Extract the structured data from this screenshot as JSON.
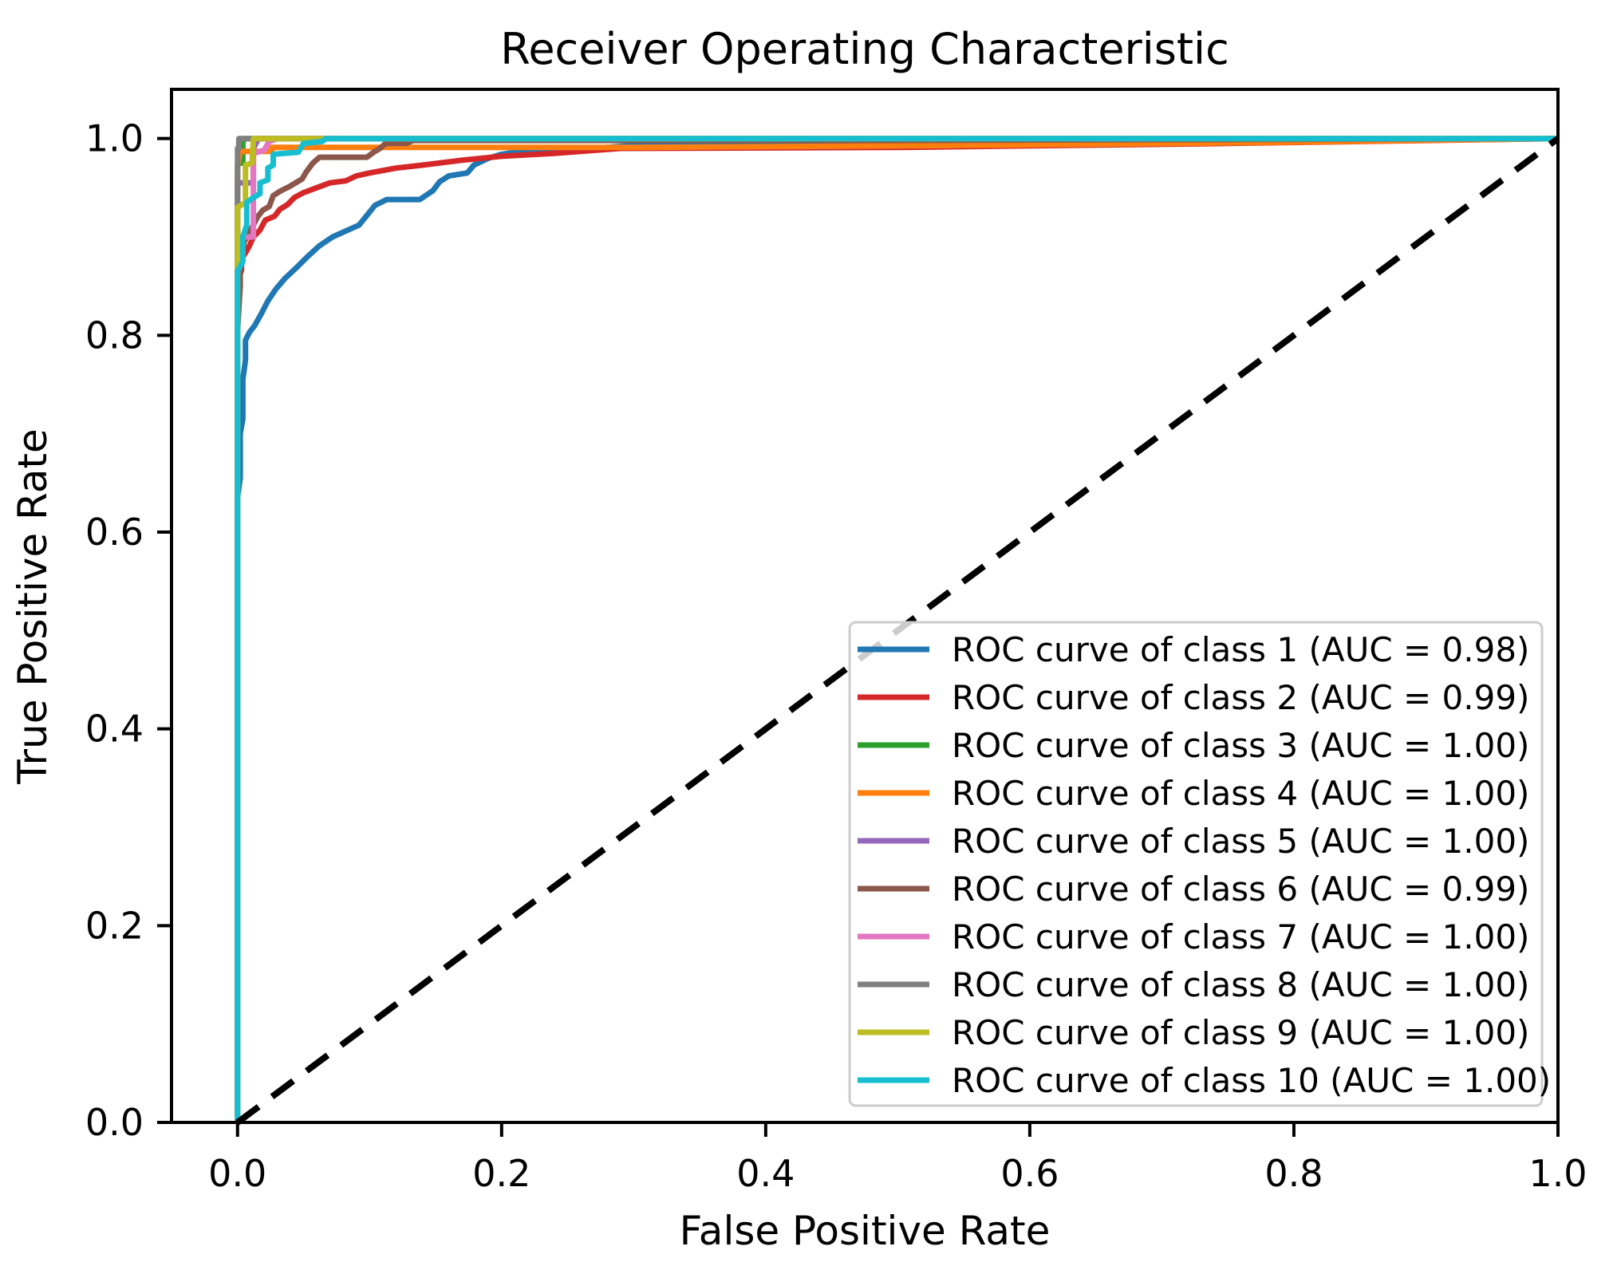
{
  "figure": {
    "title": "Receiver Operating Characteristic",
    "x_axis_label": "False Positive Rate",
    "y_axis_label": "True Positive Rate"
  },
  "chart_data": {
    "type": "line",
    "title": "Receiver Operating Characteristic",
    "xlabel": "False Positive Rate",
    "ylabel": "True Positive Rate",
    "xlim": [
      -0.05,
      1.0
    ],
    "ylim": [
      0.0,
      1.05
    ],
    "grid": false,
    "legend_position": "lower right",
    "x_ticks": {
      "values": [
        0.0,
        0.2,
        0.4,
        0.6,
        0.8,
        1.0
      ],
      "labels": [
        "0.0",
        "0.2",
        "0.4",
        "0.6",
        "0.8",
        "1.0"
      ]
    },
    "y_ticks": {
      "values": [
        0.0,
        0.2,
        0.4,
        0.6,
        0.8,
        1.0
      ],
      "labels": [
        "0.0",
        "0.2",
        "0.4",
        "0.6",
        "0.8",
        "1.0"
      ]
    },
    "reference_line": {
      "description": "chance diagonal",
      "color": "#000000",
      "style": "dashed",
      "points": [
        [
          0,
          0
        ],
        [
          1,
          1
        ]
      ]
    },
    "series": [
      {
        "name": "class 1",
        "auc": 0.98,
        "color": "#1f77b4",
        "legend": "ROC curve of class 1 (AUC = 0.98)",
        "points": [
          [
            0,
            0
          ],
          [
            0,
            0.635
          ],
          [
            0.002,
            0.655
          ],
          [
            0.002,
            0.7
          ],
          [
            0.004,
            0.715
          ],
          [
            0.004,
            0.755
          ],
          [
            0.006,
            0.775
          ],
          [
            0.006,
            0.795
          ],
          [
            0.009,
            0.803
          ],
          [
            0.013,
            0.81
          ],
          [
            0.018,
            0.822
          ],
          [
            0.023,
            0.835
          ],
          [
            0.029,
            0.847
          ],
          [
            0.036,
            0.858
          ],
          [
            0.044,
            0.868
          ],
          [
            0.053,
            0.88
          ],
          [
            0.062,
            0.891
          ],
          [
            0.072,
            0.9
          ],
          [
            0.082,
            0.906
          ],
          [
            0.092,
            0.912
          ],
          [
            0.098,
            0.922
          ],
          [
            0.104,
            0.932
          ],
          [
            0.113,
            0.938
          ],
          [
            0.138,
            0.938
          ],
          [
            0.148,
            0.947
          ],
          [
            0.153,
            0.956
          ],
          [
            0.16,
            0.962
          ],
          [
            0.174,
            0.965
          ],
          [
            0.179,
            0.973
          ],
          [
            0.19,
            0.98
          ],
          [
            0.2,
            0.984
          ],
          [
            0.21,
            0.986
          ],
          [
            0.245,
            0.987
          ],
          [
            0.27,
            0.99
          ],
          [
            0.3,
            0.993
          ],
          [
            0.32,
            0.995
          ],
          [
            0.5,
            0.996
          ],
          [
            0.75,
            0.998
          ],
          [
            1,
            1
          ]
        ]
      },
      {
        "name": "class 2",
        "auc": 0.99,
        "color": "#d62728",
        "legend": "ROC curve of class 2 (AUC = 0.99)",
        "points": [
          [
            0,
            0
          ],
          [
            0,
            0.855
          ],
          [
            0.003,
            0.866
          ],
          [
            0.003,
            0.877
          ],
          [
            0.006,
            0.884
          ],
          [
            0.009,
            0.891
          ],
          [
            0.012,
            0.9
          ],
          [
            0.017,
            0.907
          ],
          [
            0.021,
            0.917
          ],
          [
            0.028,
            0.921
          ],
          [
            0.032,
            0.928
          ],
          [
            0.038,
            0.933
          ],
          [
            0.043,
            0.94
          ],
          [
            0.05,
            0.945
          ],
          [
            0.06,
            0.95
          ],
          [
            0.07,
            0.955
          ],
          [
            0.082,
            0.957
          ],
          [
            0.09,
            0.962
          ],
          [
            0.1,
            0.965
          ],
          [
            0.12,
            0.97
          ],
          [
            0.14,
            0.973
          ],
          [
            0.17,
            0.978
          ],
          [
            0.2,
            0.982
          ],
          [
            0.24,
            0.985
          ],
          [
            0.29,
            0.99
          ],
          [
            0.5,
            0.991
          ],
          [
            0.75,
            0.995
          ],
          [
            1,
            1
          ]
        ]
      },
      {
        "name": "class 3",
        "auc": 1.0,
        "color": "#2ca02c",
        "legend": "ROC curve of class 3 (AUC = 1.00)",
        "points": [
          [
            0,
            0
          ],
          [
            0,
            0.975
          ],
          [
            0.004,
            0.975
          ],
          [
            0.004,
            0.997
          ],
          [
            0.006,
            1
          ],
          [
            1,
            1
          ]
        ]
      },
      {
        "name": "class 4",
        "auc": 1.0,
        "color": "#ff7f0e",
        "legend": "ROC curve of class 4 (AUC = 1.00)",
        "points": [
          [
            0,
            0
          ],
          [
            0,
            0.972
          ],
          [
            0.002,
            0.987
          ],
          [
            0.026,
            0.987
          ],
          [
            0.026,
            0.991
          ],
          [
            0.3,
            0.991
          ],
          [
            0.55,
            0.993
          ],
          [
            0.78,
            0.996
          ],
          [
            1,
            1
          ]
        ]
      },
      {
        "name": "class 5",
        "auc": 1.0,
        "color": "#9467bd",
        "legend": "ROC curve of class 5 (AUC = 1.00)",
        "points": [
          [
            0,
            0
          ],
          [
            0,
            0.955
          ],
          [
            0.012,
            0.955
          ],
          [
            0.012,
            0.99
          ],
          [
            0.016,
            1
          ],
          [
            1,
            1
          ]
        ]
      },
      {
        "name": "class 6",
        "auc": 0.99,
        "color": "#8c564b",
        "legend": "ROC curve of class 6 (AUC = 0.99)",
        "points": [
          [
            0,
            0
          ],
          [
            0,
            0.805
          ],
          [
            0.002,
            0.85
          ],
          [
            0.002,
            0.872
          ],
          [
            0.005,
            0.895
          ],
          [
            0.009,
            0.905
          ],
          [
            0.012,
            0.912
          ],
          [
            0.015,
            0.92
          ],
          [
            0.019,
            0.927
          ],
          [
            0.024,
            0.931
          ],
          [
            0.027,
            0.942
          ],
          [
            0.033,
            0.947
          ],
          [
            0.039,
            0.951
          ],
          [
            0.044,
            0.955
          ],
          [
            0.049,
            0.959
          ],
          [
            0.052,
            0.966
          ],
          [
            0.057,
            0.975
          ],
          [
            0.062,
            0.981
          ],
          [
            0.098,
            0.981
          ],
          [
            0.103,
            0.986
          ],
          [
            0.108,
            0.99
          ],
          [
            0.112,
            0.995
          ],
          [
            0.128,
            0.995
          ],
          [
            0.133,
            0.998
          ],
          [
            0.5,
            0.998
          ],
          [
            1,
            1
          ]
        ]
      },
      {
        "name": "class 7",
        "auc": 1.0,
        "color": "#e377c2",
        "legend": "ROC curve of class 7 (AUC = 1.00)",
        "points": [
          [
            0,
            0
          ],
          [
            0,
            0.9
          ],
          [
            0.012,
            0.9
          ],
          [
            0.012,
            0.985
          ],
          [
            0.02,
            0.988
          ],
          [
            0.024,
            0.997
          ],
          [
            0.03,
            1
          ],
          [
            1,
            1
          ]
        ]
      },
      {
        "name": "class 8",
        "auc": 1.0,
        "color": "#7f7f7f",
        "legend": "ROC curve of class 8 (AUC = 1.00)",
        "points": [
          [
            0,
            0
          ],
          [
            0,
            0.99
          ],
          [
            0.001,
            0.99
          ],
          [
            0.001,
            1
          ],
          [
            1,
            1
          ]
        ]
      },
      {
        "name": "class 9",
        "auc": 1.0,
        "color": "#bcbd22",
        "legend": "ROC curve of class 9 (AUC = 1.00)",
        "points": [
          [
            0,
            0
          ],
          [
            0,
            0.93
          ],
          [
            0.006,
            0.935
          ],
          [
            0.006,
            0.973
          ],
          [
            0.011,
            0.975
          ],
          [
            0.012,
            1
          ],
          [
            1,
            1
          ]
        ]
      },
      {
        "name": "class 10",
        "auc": 1.0,
        "color": "#17becf",
        "legend": "ROC curve of class 10 (AUC = 1.00)",
        "points": [
          [
            0,
            0
          ],
          [
            0,
            0.865
          ],
          [
            0.004,
            0.875
          ],
          [
            0.004,
            0.9
          ],
          [
            0.007,
            0.912
          ],
          [
            0.007,
            0.935
          ],
          [
            0.012,
            0.94
          ],
          [
            0.017,
            0.944
          ],
          [
            0.017,
            0.955
          ],
          [
            0.023,
            0.958
          ],
          [
            0.023,
            0.97
          ],
          [
            0.027,
            0.973
          ],
          [
            0.027,
            0.984
          ],
          [
            0.046,
            0.986
          ],
          [
            0.05,
            0.995
          ],
          [
            0.064,
            0.997
          ],
          [
            0.067,
            1
          ],
          [
            1,
            1
          ]
        ]
      }
    ],
    "legend_style": {
      "background": "rgba(255,255,255,0.8)",
      "border_color": "#cccccc"
    }
  }
}
